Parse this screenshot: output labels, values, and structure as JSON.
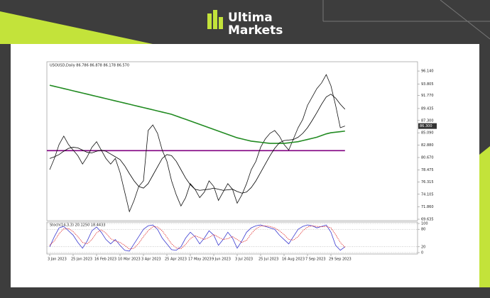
{
  "brand": {
    "line1": "Ultima",
    "line2": "Markets"
  },
  "chart_data": [
    {
      "type": "line",
      "title": "USOUSD,Daily 86.786 86.878 86.178 86.570",
      "categories": [
        "3 Jan 2023",
        null,
        null,
        null,
        null,
        "25 Jan 2023",
        null,
        null,
        null,
        null,
        "16 Feb 2023",
        null,
        null,
        null,
        null,
        "10 Mar 2023",
        null,
        null,
        null,
        null,
        "3 Apr 2023",
        null,
        null,
        null,
        null,
        "25 Apr 2023",
        null,
        null,
        null,
        null,
        "17 May 2023",
        null,
        null,
        null,
        null,
        "9 Jun 2023",
        null,
        null,
        null,
        null,
        "3 Jul 2023",
        null,
        null,
        null,
        null,
        "25 Jul 2023",
        null,
        null,
        null,
        null,
        "16 Aug 2023",
        null,
        null,
        null,
        null,
        "7 Sep 2023",
        null,
        null,
        null,
        null,
        "29 Sep 2023",
        null,
        null,
        null
      ],
      "series": [
        {
          "color": "#111111",
          "values": [
            78.5,
            80.5,
            83.0,
            84.5,
            83.0,
            82.0,
            81.0,
            79.5,
            80.8,
            82.5,
            83.5,
            82.0,
            80.5,
            79.5,
            80.5,
            78.0,
            74.5,
            71.0,
            73.0,
            75.5,
            76.5,
            85.5,
            86.5,
            85.0,
            82.0,
            80.0,
            76.5,
            74.0,
            72.0,
            73.5,
            76.0,
            75.0,
            73.5,
            74.5,
            76.5,
            75.5,
            73.0,
            74.5,
            76.0,
            75.0,
            72.5,
            74.0,
            76.0,
            78.5,
            80.0,
            82.5,
            84.0,
            85.0,
            85.5,
            84.5,
            83.0,
            82.0,
            84.0,
            86.0,
            87.5,
            90.0,
            91.5,
            93.0,
            94.0,
            95.5,
            93.5,
            90.0,
            86.0,
            86.3
          ]
        },
        {
          "color": "#228b22",
          "values": [
            93.6,
            93.4,
            93.2,
            93.0,
            92.8,
            92.6,
            92.4,
            92.2,
            92.0,
            91.8,
            91.6,
            91.4,
            91.2,
            91.0,
            90.8,
            90.6,
            90.4,
            90.2,
            90.0,
            89.8,
            89.6,
            89.4,
            89.2,
            89.0,
            88.8,
            88.6,
            88.4,
            88.1,
            87.8,
            87.5,
            87.2,
            86.9,
            86.6,
            86.3,
            86.0,
            85.7,
            85.4,
            85.1,
            84.8,
            84.5,
            84.2,
            84.0,
            83.8,
            83.6,
            83.5,
            83.4,
            83.3,
            83.2,
            83.2,
            83.2,
            83.2,
            83.3,
            83.4,
            83.5,
            83.7,
            83.9,
            84.1,
            84.3,
            84.6,
            84.9,
            85.1,
            85.2,
            85.3,
            85.4
          ]
        },
        {
          "color": "#000000",
          "values": [
            80.5,
            80.8,
            81.2,
            81.8,
            82.3,
            82.5,
            82.4,
            82.0,
            81.6,
            81.5,
            81.8,
            82.0,
            81.8,
            81.3,
            80.8,
            80.3,
            79.2,
            77.8,
            76.5,
            75.5,
            75.2,
            76.0,
            77.5,
            79.0,
            80.5,
            81.2,
            81.0,
            80.0,
            78.5,
            77.0,
            75.8,
            75.0,
            74.8,
            74.9,
            75.0,
            75.2,
            75.0,
            74.8,
            74.9,
            75.0,
            74.6,
            74.3,
            74.5,
            75.3,
            76.5,
            78.0,
            79.5,
            81.0,
            82.3,
            83.3,
            83.7,
            83.8,
            83.9,
            84.3,
            85.0,
            86.0,
            87.3,
            88.7,
            90.2,
            91.5,
            92.0,
            91.3,
            90.2,
            89.3
          ]
        }
      ],
      "hlines": [
        {
          "value": 81.9,
          "color": "#800080"
        }
      ],
      "last_price": {
        "value": 86.3,
        "label": "86.300"
      },
      "ylim": [
        69.38,
        97.8
      ],
      "yticks": [
        {
          "value": 69.635,
          "label": "69.635"
        },
        {
          "value": 71.86,
          "label": "71.860"
        },
        {
          "value": 74.105,
          "label": "74.105"
        },
        {
          "value": 76.315,
          "label": "76.315"
        },
        {
          "value": 78.475,
          "label": "78.475"
        },
        {
          "value": 80.67,
          "label": "80.670"
        },
        {
          "value": 82.88,
          "label": "82.880"
        },
        {
          "value": 85.09,
          "label": "85.090"
        },
        {
          "value": 87.3,
          "label": "87.300"
        },
        {
          "value": 89.435,
          "label": "89.435"
        },
        {
          "value": 91.77,
          "label": "91.770"
        },
        {
          "value": 93.805,
          "label": "93.805"
        },
        {
          "value": 96.14,
          "label": "96.140"
        }
      ]
    },
    {
      "type": "line",
      "title": "Stoch(14,3,3) 20.1250 18.4433",
      "series": [
        {
          "color": "#3a3ad0",
          "values": [
            20,
            55,
            85,
            90,
            75,
            60,
            35,
            15,
            40,
            75,
            88,
            70,
            45,
            30,
            45,
            25,
            8,
            5,
            30,
            55,
            80,
            92,
            95,
            80,
            50,
            30,
            10,
            8,
            20,
            50,
            70,
            55,
            30,
            50,
            75,
            60,
            25,
            45,
            70,
            50,
            15,
            40,
            70,
            85,
            92,
            95,
            90,
            85,
            80,
            60,
            45,
            30,
            55,
            80,
            90,
            95,
            92,
            85,
            90,
            95,
            70,
            25,
            8,
            20
          ]
        },
        {
          "color": "#e03030",
          "dashed": true,
          "values": [
            25,
            40,
            65,
            82,
            83,
            72,
            55,
            35,
            30,
            45,
            68,
            78,
            67,
            48,
            40,
            35,
            25,
            12,
            15,
            32,
            55,
            75,
            89,
            88,
            75,
            53,
            30,
            16,
            13,
            28,
            48,
            58,
            52,
            45,
            52,
            62,
            53,
            45,
            48,
            55,
            45,
            35,
            42,
            65,
            82,
            91,
            92,
            90,
            85,
            75,
            62,
            45,
            43,
            55,
            75,
            88,
            92,
            90,
            89,
            90,
            85,
            62,
            35,
            18
          ]
        }
      ],
      "ylim": [
        0,
        100
      ],
      "yticks": [
        0,
        20,
        80,
        100
      ]
    }
  ]
}
